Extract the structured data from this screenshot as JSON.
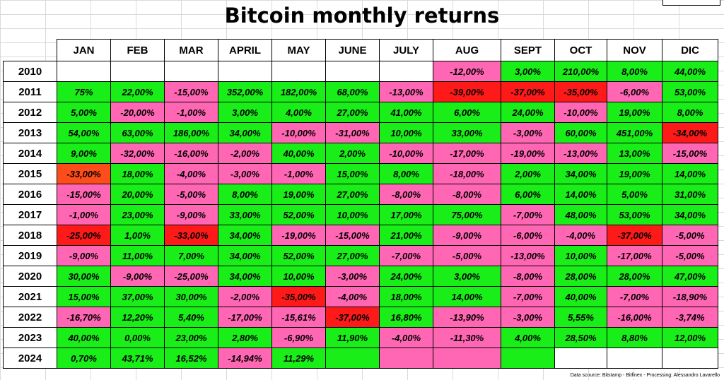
{
  "title": "Bitcoin monthly returns",
  "source": "Data scource: Bitstamp - Bitfinex - Processing: Alessandro Lavarello",
  "colors": {
    "positive": "#19ee19",
    "negative": "#ff66b3",
    "deep_negative": "#ff1a1a",
    "orange_negative": "#ff4d1a",
    "empty": "#ffffff"
  },
  "table": {
    "months": [
      "JAN",
      "FEB",
      "MAR",
      "APRIL",
      "MAY",
      "JUNE",
      "JULY",
      "AUG",
      "SEPT",
      "OCT",
      "NOV",
      "DIC"
    ],
    "rows": [
      {
        "year": "2010",
        "cells": [
          {
            "v": "",
            "c": "empty"
          },
          {
            "v": "",
            "c": "empty"
          },
          {
            "v": "",
            "c": "empty"
          },
          {
            "v": "",
            "c": "empty"
          },
          {
            "v": "",
            "c": "empty"
          },
          {
            "v": "",
            "c": "empty"
          },
          {
            "v": "",
            "c": "empty"
          },
          {
            "v": "-12,00%",
            "c": "neg"
          },
          {
            "v": "3,00%",
            "c": "pos"
          },
          {
            "v": "210,00%",
            "c": "pos"
          },
          {
            "v": "8,00%",
            "c": "pos"
          },
          {
            "v": "44,00%",
            "c": "pos"
          }
        ]
      },
      {
        "year": "2011",
        "cells": [
          {
            "v": "75%",
            "c": "pos"
          },
          {
            "v": "22,00%",
            "c": "pos"
          },
          {
            "v": "-15,00%",
            "c": "neg"
          },
          {
            "v": "352,00%",
            "c": "pos"
          },
          {
            "v": "182,00%",
            "c": "pos"
          },
          {
            "v": "68,00%",
            "c": "pos"
          },
          {
            "v": "-13,00%",
            "c": "neg"
          },
          {
            "v": "-39,00%",
            "c": "dneg"
          },
          {
            "v": "-37,00%",
            "c": "dneg"
          },
          {
            "v": "-35,00%",
            "c": "dneg"
          },
          {
            "v": "-6,00%",
            "c": "neg"
          },
          {
            "v": "53,00%",
            "c": "pos"
          }
        ]
      },
      {
        "year": "2012",
        "cells": [
          {
            "v": "5,00%",
            "c": "pos"
          },
          {
            "v": "-20,00%",
            "c": "neg"
          },
          {
            "v": "-1,00%",
            "c": "neg"
          },
          {
            "v": "3,00%",
            "c": "pos"
          },
          {
            "v": "4,00%",
            "c": "pos"
          },
          {
            "v": "27,00%",
            "c": "pos"
          },
          {
            "v": "41,00%",
            "c": "pos"
          },
          {
            "v": "6,00%",
            "c": "pos"
          },
          {
            "v": "24,00%",
            "c": "pos"
          },
          {
            "v": "-10,00%",
            "c": "neg"
          },
          {
            "v": "19,00%",
            "c": "pos"
          },
          {
            "v": "8,00%",
            "c": "pos"
          }
        ]
      },
      {
        "year": "2013",
        "cells": [
          {
            "v": "54,00%",
            "c": "pos"
          },
          {
            "v": "63,00%",
            "c": "pos"
          },
          {
            "v": "186,00%",
            "c": "pos"
          },
          {
            "v": "34,00%",
            "c": "pos"
          },
          {
            "v": "-10,00%",
            "c": "neg"
          },
          {
            "v": "-31,00%",
            "c": "neg"
          },
          {
            "v": "10,00%",
            "c": "pos"
          },
          {
            "v": "33,00%",
            "c": "pos"
          },
          {
            "v": "-3,00%",
            "c": "neg"
          },
          {
            "v": "60,00%",
            "c": "pos"
          },
          {
            "v": "451,00%",
            "c": "pos"
          },
          {
            "v": "-34,00%",
            "c": "dneg"
          }
        ]
      },
      {
        "year": "2014",
        "cells": [
          {
            "v": "9,00%",
            "c": "pos"
          },
          {
            "v": "-32,00%",
            "c": "neg"
          },
          {
            "v": "-16,00%",
            "c": "neg"
          },
          {
            "v": "-2,00%",
            "c": "neg"
          },
          {
            "v": "40,00%",
            "c": "pos"
          },
          {
            "v": "2,00%",
            "c": "pos"
          },
          {
            "v": "-10,00%",
            "c": "neg"
          },
          {
            "v": "-17,00%",
            "c": "neg"
          },
          {
            "v": "-19,00%",
            "c": "neg"
          },
          {
            "v": "-13,00%",
            "c": "neg"
          },
          {
            "v": "13,00%",
            "c": "pos"
          },
          {
            "v": "-15,00%",
            "c": "neg"
          }
        ]
      },
      {
        "year": "2015",
        "cells": [
          {
            "v": "-33,00%",
            "c": "oneg"
          },
          {
            "v": "18,00%",
            "c": "pos"
          },
          {
            "v": "-4,00%",
            "c": "neg"
          },
          {
            "v": "-3,00%",
            "c": "neg"
          },
          {
            "v": "-1,00%",
            "c": "neg"
          },
          {
            "v": "15,00%",
            "c": "pos"
          },
          {
            "v": "8,00%",
            "c": "pos"
          },
          {
            "v": "-18,00%",
            "c": "neg"
          },
          {
            "v": "2,00%",
            "c": "pos"
          },
          {
            "v": "34,00%",
            "c": "pos"
          },
          {
            "v": "19,00%",
            "c": "pos"
          },
          {
            "v": "14,00%",
            "c": "pos"
          }
        ]
      },
      {
        "year": "2016",
        "cells": [
          {
            "v": "-15,00%",
            "c": "neg"
          },
          {
            "v": "20,00%",
            "c": "pos"
          },
          {
            "v": "-5,00%",
            "c": "neg"
          },
          {
            "v": "8,00%",
            "c": "pos"
          },
          {
            "v": "19,00%",
            "c": "pos"
          },
          {
            "v": "27,00%",
            "c": "pos"
          },
          {
            "v": "-8,00%",
            "c": "neg"
          },
          {
            "v": "-8,00%",
            "c": "neg"
          },
          {
            "v": "6,00%",
            "c": "pos"
          },
          {
            "v": "14,00%",
            "c": "pos"
          },
          {
            "v": "5,00%",
            "c": "pos"
          },
          {
            "v": "31,00%",
            "c": "pos"
          }
        ]
      },
      {
        "year": "2017",
        "cells": [
          {
            "v": "-1,00%",
            "c": "neg"
          },
          {
            "v": "23,00%",
            "c": "pos"
          },
          {
            "v": "-9,00%",
            "c": "neg"
          },
          {
            "v": "33,00%",
            "c": "pos"
          },
          {
            "v": "52,00%",
            "c": "pos"
          },
          {
            "v": "10,00%",
            "c": "pos"
          },
          {
            "v": "17,00%",
            "c": "pos"
          },
          {
            "v": "75,00%",
            "c": "pos"
          },
          {
            "v": "-7,00%",
            "c": "neg"
          },
          {
            "v": "48,00%",
            "c": "pos"
          },
          {
            "v": "53,00%",
            "c": "pos"
          },
          {
            "v": "34,00%",
            "c": "pos"
          }
        ]
      },
      {
        "year": "2018",
        "cells": [
          {
            "v": "-25,00%",
            "c": "dneg"
          },
          {
            "v": "1,00%",
            "c": "pos"
          },
          {
            "v": "-33,00%",
            "c": "dneg"
          },
          {
            "v": "34,00%",
            "c": "pos"
          },
          {
            "v": "-19,00%",
            "c": "neg"
          },
          {
            "v": "-15,00%",
            "c": "neg"
          },
          {
            "v": "21,00%",
            "c": "pos"
          },
          {
            "v": "-9,00%",
            "c": "neg"
          },
          {
            "v": "-6,00%",
            "c": "neg"
          },
          {
            "v": "-4,00%",
            "c": "neg"
          },
          {
            "v": "-37,00%",
            "c": "dneg"
          },
          {
            "v": "-5,00%",
            "c": "neg"
          }
        ]
      },
      {
        "year": "2019",
        "cells": [
          {
            "v": "-9,00%",
            "c": "neg"
          },
          {
            "v": "11,00%",
            "c": "pos"
          },
          {
            "v": "7,00%",
            "c": "pos"
          },
          {
            "v": "34,00%",
            "c": "pos"
          },
          {
            "v": "52,00%",
            "c": "pos"
          },
          {
            "v": "27,00%",
            "c": "pos"
          },
          {
            "v": "-7,00%",
            "c": "neg"
          },
          {
            "v": "-5,00%",
            "c": "neg"
          },
          {
            "v": "-13,00%",
            "c": "neg"
          },
          {
            "v": "10,00%",
            "c": "pos"
          },
          {
            "v": "-17,00%",
            "c": "neg"
          },
          {
            "v": "-5,00%",
            "c": "neg"
          }
        ]
      },
      {
        "year": "2020",
        "cells": [
          {
            "v": "30,00%",
            "c": "pos"
          },
          {
            "v": "-9,00%",
            "c": "neg"
          },
          {
            "v": "-25,00%",
            "c": "neg"
          },
          {
            "v": "34,00%",
            "c": "pos"
          },
          {
            "v": "10,00%",
            "c": "pos"
          },
          {
            "v": "-3,00%",
            "c": "neg"
          },
          {
            "v": "24,00%",
            "c": "pos"
          },
          {
            "v": "3,00%",
            "c": "pos"
          },
          {
            "v": "-8,00%",
            "c": "neg"
          },
          {
            "v": "28,00%",
            "c": "pos"
          },
          {
            "v": "28,00%",
            "c": "pos"
          },
          {
            "v": "47,00%",
            "c": "pos"
          }
        ]
      },
      {
        "year": "2021",
        "cells": [
          {
            "v": "15,00%",
            "c": "pos"
          },
          {
            "v": "37,00%",
            "c": "pos"
          },
          {
            "v": "30,00%",
            "c": "pos"
          },
          {
            "v": "-2,00%",
            "c": "neg"
          },
          {
            "v": "-35,00%",
            "c": "dneg"
          },
          {
            "v": "-4,00%",
            "c": "neg"
          },
          {
            "v": "18,00%",
            "c": "pos"
          },
          {
            "v": "14,00%",
            "c": "pos"
          },
          {
            "v": "-7,00%",
            "c": "neg"
          },
          {
            "v": "40,00%",
            "c": "pos"
          },
          {
            "v": "-7,00%",
            "c": "neg"
          },
          {
            "v": "-18,90%",
            "c": "neg"
          }
        ]
      },
      {
        "year": "2022",
        "cells": [
          {
            "v": "-16,70%",
            "c": "neg"
          },
          {
            "v": "12,20%",
            "c": "pos"
          },
          {
            "v": "5,40%",
            "c": "pos"
          },
          {
            "v": "-17,00%",
            "c": "neg"
          },
          {
            "v": "-15,61%",
            "c": "neg"
          },
          {
            "v": "-37,00%",
            "c": "dneg"
          },
          {
            "v": "16,80%",
            "c": "pos"
          },
          {
            "v": "-13,90%",
            "c": "neg"
          },
          {
            "v": "-3,00%",
            "c": "neg"
          },
          {
            "v": "5,55%",
            "c": "pos"
          },
          {
            "v": "-16,00%",
            "c": "neg"
          },
          {
            "v": "-3,74%",
            "c": "neg"
          }
        ]
      },
      {
        "year": "2023",
        "cells": [
          {
            "v": "40,00%",
            "c": "pos"
          },
          {
            "v": "0,00%",
            "c": "pos"
          },
          {
            "v": "23,00%",
            "c": "pos"
          },
          {
            "v": "2,80%",
            "c": "pos"
          },
          {
            "v": "-6,90%",
            "c": "neg"
          },
          {
            "v": "11,90%",
            "c": "pos"
          },
          {
            "v": "-4,00%",
            "c": "neg"
          },
          {
            "v": "-11,30%",
            "c": "neg"
          },
          {
            "v": "4,00%",
            "c": "pos"
          },
          {
            "v": "28,50%",
            "c": "pos"
          },
          {
            "v": "8,80%",
            "c": "pos"
          },
          {
            "v": "12,00%",
            "c": "pos"
          }
        ]
      },
      {
        "year": "2024",
        "cells": [
          {
            "v": "0,70%",
            "c": "pos"
          },
          {
            "v": "43,71%",
            "c": "pos"
          },
          {
            "v": "16,52%",
            "c": "pos"
          },
          {
            "v": "-14,94%",
            "c": "neg"
          },
          {
            "v": "11,29%",
            "c": "pos"
          },
          {
            "v": "",
            "c": "pos"
          },
          {
            "v": "",
            "c": "neg"
          },
          {
            "v": "",
            "c": "neg"
          },
          {
            "v": "",
            "c": "pos"
          },
          {
            "v": "",
            "c": "empty"
          },
          {
            "v": "",
            "c": "empty"
          },
          {
            "v": "",
            "c": "empty"
          }
        ]
      }
    ]
  }
}
